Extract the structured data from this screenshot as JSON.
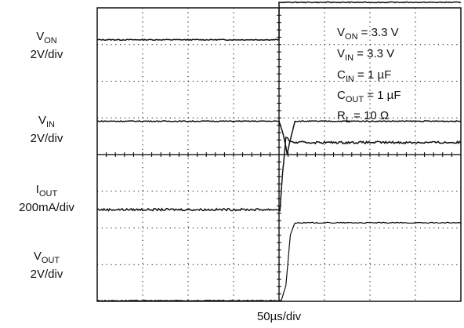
{
  "chart_data": {
    "type": "line",
    "time_per_div": "50µs/div",
    "divisions": {
      "x": 8,
      "y": 8
    },
    "grid": true,
    "channels": [
      {
        "symbol": "V",
        "subscript": "ON",
        "scale": "2V/div",
        "trace": {
          "x_div": [
            0,
            4.0,
            4.0,
            8
          ],
          "y_div": [
            1.05,
            1.05,
            2.07,
            2.07
          ]
        }
      },
      {
        "symbol": "V",
        "subscript": "IN",
        "scale": "2V/div",
        "trace": {
          "x_div": [
            0,
            4.0,
            4.1,
            4.18,
            4.25,
            4.35,
            8
          ],
          "y_div": [
            0.99,
            0.99,
            0.6,
            0.1,
            0.5,
            0.99,
            0.99
          ]
        }
      },
      {
        "symbol": "I",
        "subscript": "OUT",
        "scale": "200mA/div",
        "trace": {
          "x_div": [
            0,
            4.02,
            4.08,
            4.15,
            4.22,
            4.3,
            8
          ],
          "y_div": [
            1.0,
            1.0,
            2.0,
            2.95,
            2.9,
            2.83,
            2.83
          ]
        }
      },
      {
        "symbol": "V",
        "subscript": "OUT",
        "scale": "2V/div",
        "trace": {
          "x_div": [
            0,
            4.05,
            4.15,
            4.25,
            4.35,
            8
          ],
          "y_div": [
            0.0,
            0.0,
            0.4,
            1.8,
            2.12,
            2.12
          ]
        }
      }
    ],
    "annotations": [
      {
        "symbol": "V",
        "subscript": "ON",
        "value": " = 3.3 V"
      },
      {
        "symbol": "V",
        "subscript": "IN",
        "value": " = 3.3 V"
      },
      {
        "symbol": "C",
        "subscript": "IN",
        "value": " = 1 µF"
      },
      {
        "symbol": "C",
        "subscript": "OUT",
        "value": " = 1 µF"
      },
      {
        "symbol": "R",
        "subscript": "L",
        "value": " = 10 Ω"
      }
    ]
  }
}
